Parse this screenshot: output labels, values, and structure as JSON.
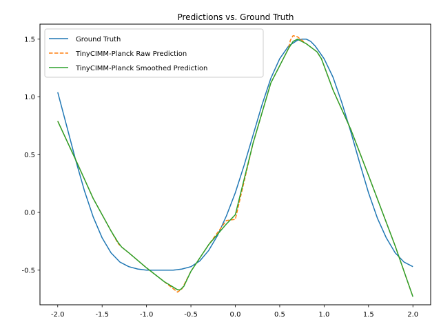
{
  "chart_data": {
    "type": "line",
    "title": "Predictions vs. Ground Truth",
    "xlabel": "",
    "ylabel": "",
    "xlim": [
      -2.2,
      2.2
    ],
    "ylim": [
      -0.8,
      1.63
    ],
    "xticks": [
      "-2.0",
      "-1.5",
      "-1.0",
      "-0.5",
      "0.0",
      "0.5",
      "1.0",
      "1.5",
      "2.0"
    ],
    "xtick_values": [
      -2.0,
      -1.5,
      -1.0,
      -0.5,
      0.0,
      0.5,
      1.0,
      1.5,
      2.0
    ],
    "yticks": [
      "-0.5",
      "0.0",
      "0.5",
      "1.0",
      "1.5"
    ],
    "ytick_values": [
      -0.5,
      0.0,
      0.5,
      1.0,
      1.5
    ],
    "grid": false,
    "legend_position": "top-left",
    "series": [
      {
        "name": "Ground Truth",
        "color": "#1f77b4",
        "style": "solid",
        "x": [
          -2.0,
          -1.9,
          -1.8,
          -1.7,
          -1.6,
          -1.5,
          -1.4,
          -1.3,
          -1.2,
          -1.1,
          -1.0,
          -0.9,
          -0.8,
          -0.7,
          -0.6,
          -0.5,
          -0.4,
          -0.3,
          -0.2,
          -0.1,
          0.0,
          0.1,
          0.2,
          0.3,
          0.4,
          0.5,
          0.6,
          0.7,
          0.75,
          0.8,
          0.85,
          0.9,
          1.0,
          1.1,
          1.2,
          1.3,
          1.4,
          1.5,
          1.6,
          1.7,
          1.8,
          1.9,
          2.0
        ],
        "y": [
          1.04,
          0.75,
          0.46,
          0.19,
          -0.04,
          -0.22,
          -0.35,
          -0.43,
          -0.47,
          -0.49,
          -0.5,
          -0.5,
          -0.5,
          -0.5,
          -0.49,
          -0.47,
          -0.42,
          -0.33,
          -0.2,
          -0.03,
          0.17,
          0.41,
          0.67,
          0.93,
          1.16,
          1.33,
          1.44,
          1.49,
          1.5,
          1.5,
          1.48,
          1.44,
          1.33,
          1.17,
          0.95,
          0.7,
          0.43,
          0.17,
          -0.05,
          -0.22,
          -0.35,
          -0.43,
          -0.47
        ]
      },
      {
        "name": "TinyCIMM-Planck Raw Prediction",
        "color": "#ff7f0e",
        "style": "dashed",
        "x": [
          -2.0,
          -1.8,
          -1.6,
          -1.4,
          -1.32,
          -1.28,
          -1.2,
          -1.0,
          -0.8,
          -0.65,
          -0.6,
          -0.5,
          -0.3,
          -0.1,
          0.0,
          0.2,
          0.4,
          0.6,
          0.62,
          0.65,
          0.7,
          0.8,
          0.92,
          0.97,
          1.1,
          1.3,
          1.5,
          1.8,
          2.0
        ],
        "y": [
          0.79,
          0.46,
          0.12,
          -0.16,
          -0.27,
          -0.3,
          -0.35,
          -0.48,
          -0.6,
          -0.69,
          -0.66,
          -0.51,
          -0.28,
          -0.07,
          -0.06,
          0.6,
          1.12,
          1.42,
          1.49,
          1.53,
          1.52,
          1.46,
          1.39,
          1.33,
          1.06,
          0.72,
          0.32,
          -0.29,
          -0.73
        ]
      },
      {
        "name": "TinyCIMM-Planck Smoothed Prediction",
        "color": "#2ca02c",
        "style": "solid",
        "x": [
          -2.0,
          -1.8,
          -1.6,
          -1.4,
          -1.32,
          -1.28,
          -1.2,
          -1.0,
          -0.8,
          -0.65,
          -0.62,
          -0.58,
          -0.5,
          -0.3,
          -0.1,
          0.0,
          0.2,
          0.4,
          0.6,
          0.65,
          0.7,
          0.8,
          0.92,
          0.97,
          1.1,
          1.3,
          1.5,
          1.8,
          2.0
        ],
        "y": [
          0.79,
          0.46,
          0.12,
          -0.16,
          -0.26,
          -0.3,
          -0.35,
          -0.48,
          -0.6,
          -0.67,
          -0.67,
          -0.64,
          -0.51,
          -0.28,
          -0.1,
          -0.02,
          0.6,
          1.12,
          1.42,
          1.48,
          1.5,
          1.46,
          1.39,
          1.33,
          1.06,
          0.72,
          0.32,
          -0.29,
          -0.73
        ]
      }
    ]
  }
}
